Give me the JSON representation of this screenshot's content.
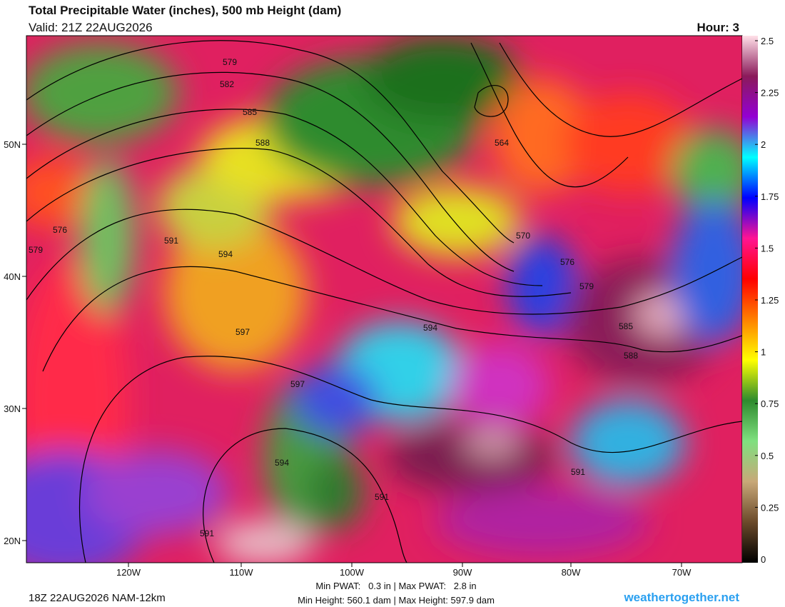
{
  "header": {
    "title": "Total Precipitable Water (inches), 500 mb Height (dam)",
    "valid": "Valid: 21Z 22AUG2026",
    "hour": "Hour: 3"
  },
  "colorbar": {
    "range": [
      0,
      2.5
    ],
    "ticks": [
      0,
      0.25,
      0.5,
      0.75,
      1,
      1.25,
      1.5,
      1.75,
      2,
      2.25,
      2.5
    ],
    "colors": [
      "#000000",
      "#6b4a2a",
      "#c8a878",
      "#7fe07f",
      "#2e8b2e",
      "#ffff00",
      "#ff8000",
      "#ff0000",
      "#ff1493",
      "#0000ff",
      "#00ffff",
      "#9400d3",
      "#8b1a5a",
      "#ffe0e8"
    ]
  },
  "map": {
    "lat_labels": [
      "50N",
      "40N",
      "30N",
      "20N"
    ],
    "lon_labels": [
      "120W",
      "110W",
      "100W",
      "90W",
      "80W",
      "70W"
    ],
    "contour_labels": [
      "579",
      "582",
      "585",
      "588",
      "564",
      "576",
      "579",
      "591",
      "594",
      "570",
      "576",
      "579",
      "597",
      "594",
      "585",
      "588",
      "597",
      "594",
      "591",
      "591",
      "591"
    ]
  },
  "footer": {
    "run": "18Z 22AUG2026 NAM-12km",
    "pwat": "Min PWAT:   0.3 in | Max PWAT:   2.8 in",
    "height": "Min Height: 560.1 dam | Max Height: 597.9 dam",
    "site": "weathertogether.net"
  }
}
